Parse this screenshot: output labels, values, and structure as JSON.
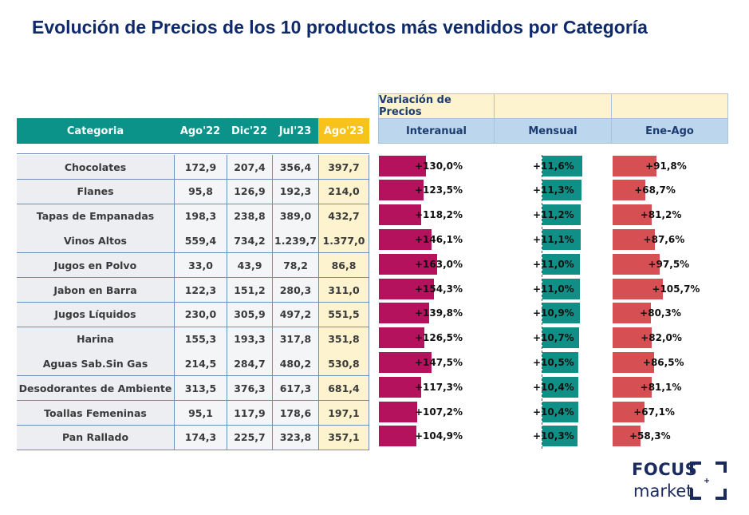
{
  "title": "Evolución de Precios de los 10 productos más vendidos por Categoría",
  "table": {
    "headers": [
      "Categoria",
      "Ago'22",
      "Dic'22",
      "Jul'23",
      "Ago'23"
    ],
    "rows": [
      [
        "Chocolates",
        "172,9",
        "207,4",
        "356,4",
        "397,7"
      ],
      [
        "Flanes",
        "95,8",
        "126,9",
        "192,3",
        "214,0"
      ],
      [
        "Tapas de Empanadas",
        "198,3",
        "238,8",
        "389,0",
        "432,7"
      ],
      [
        "Vinos Altos",
        "559,4",
        "734,2",
        "1.239,7",
        "1.377,0"
      ],
      [
        "Jugos en Polvo",
        "33,0",
        "43,9",
        "78,2",
        "86,8"
      ],
      [
        "Jabon en Barra",
        "122,3",
        "151,2",
        "280,3",
        "311,0"
      ],
      [
        "Jugos Líquidos",
        "230,0",
        "305,9",
        "497,2",
        "551,5"
      ],
      [
        "Harina",
        "155,3",
        "193,3",
        "317,8",
        "351,8"
      ],
      [
        "Aguas Sab.Sin Gas",
        "214,5",
        "284,7",
        "480,2",
        "530,8"
      ],
      [
        "Desodorantes de Ambiente",
        "313,5",
        "376,3",
        "617,3",
        "681,4"
      ],
      [
        "Toallas Femeninas",
        "95,1",
        "117,9",
        "178,6",
        "197,1"
      ],
      [
        "Pan Rallado",
        "174,3",
        "225,7",
        "323,8",
        "357,1"
      ]
    ]
  },
  "variation_header": "Variación de Precios",
  "chart_data": {
    "type": "bar",
    "categories": [
      "Chocolates",
      "Flanes",
      "Tapas de Empanadas",
      "Vinos Altos",
      "Jugos en Polvo",
      "Jabon en Barra",
      "Jugos Líquidos",
      "Harina",
      "Aguas Sab.Sin Gas",
      "Desodorantes de Ambiente",
      "Toallas Femeninas",
      "Pan Rallado"
    ],
    "series": [
      {
        "name": "Interanual",
        "color": "#b5125e",
        "values": [
          130.0,
          123.5,
          118.2,
          146.1,
          163.0,
          154.3,
          139.8,
          126.5,
          147.5,
          117.3,
          107.2,
          104.9
        ],
        "labels": [
          "+130,0%",
          "+123,5%",
          "+118,2%",
          "+146,1%",
          "+163,0%",
          "+154,3%",
          "+139,8%",
          "+126,5%",
          "+147,5%",
          "+117,3%",
          "+107,2%",
          "+104,9%"
        ]
      },
      {
        "name": "Mensual",
        "color": "#0f8f86",
        "values": [
          11.6,
          11.3,
          11.2,
          11.1,
          11.0,
          11.0,
          10.9,
          10.7,
          10.5,
          10.4,
          10.4,
          10.3
        ],
        "labels": [
          "+11,6%",
          "+11,3%",
          "+11,2%",
          "+11,1%",
          "+11,0%",
          "+11,0%",
          "+10,9%",
          "+10,7%",
          "+10,5%",
          "+10,4%",
          "+10,4%",
          "+10,3%"
        ]
      },
      {
        "name": "Ene-Ago",
        "color": "#d64f52",
        "values": [
          91.8,
          68.7,
          81.2,
          87.6,
          97.5,
          105.7,
          80.3,
          82.0,
          86.5,
          81.1,
          67.1,
          58.3
        ],
        "labels": [
          "+91,8%",
          "+68,7%",
          "+81,2%",
          "+87,6%",
          "+97,5%",
          "+105,7%",
          "+80,3%",
          "+82,0%",
          "+86,5%",
          "+81,1%",
          "+67,1%",
          "+58,3%"
        ]
      }
    ]
  },
  "logo": {
    "line1": "FOCUS",
    "line2": "market"
  }
}
